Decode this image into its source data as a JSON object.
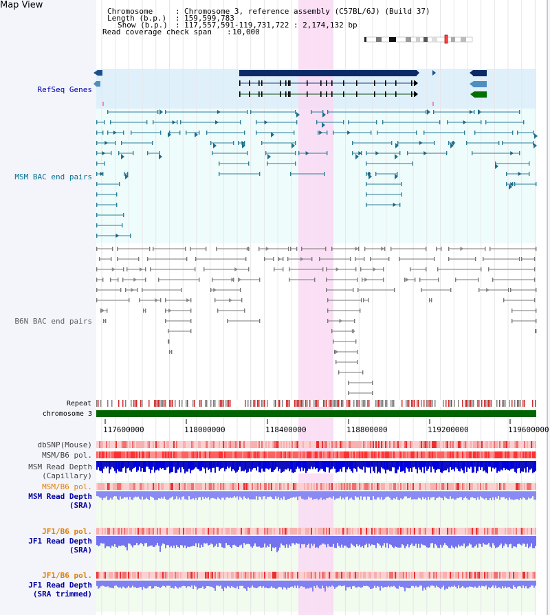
{
  "title": "Map View",
  "header": {
    "chromosome_key": "Chromosome",
    "chromosome_val": "Chromosome 3, reference assembly (C57BL/6J) (Build 37)",
    "length_key": "Length (b.p.)",
    "length_val": "159,599,783",
    "show_key": "Show (b.p.)",
    "show_val": "117,557,591-119,731,722 : 2,174,132 bp",
    "coverage_key": "Read coverage check span",
    "coverage_val": "10,000"
  },
  "labels": {
    "refseq": "RefSeq Genes",
    "msm_bac": "MSM BAC end pairs",
    "b6n_bac": "B6N BAC end pairs",
    "repeat": "Repeat",
    "chromosome": "chromosome 3",
    "dbsnp": "dbSNP(Mouse)",
    "msm_b6_pol": "MSM/B6 pol.",
    "msm_depth_cap_1": "MSM Read Depth",
    "msm_depth_cap_2": "(Capillary)",
    "msm_b6_pol2": "MSM/B6 pol.",
    "msm_depth_sra_1": "MSM Read Depth",
    "msm_depth_sra_2": "(SRA)",
    "jf1_pol": "JF1/B6 pol.",
    "jf1_depth_1": "JF1 Read Depth",
    "jf1_depth_2": "(SRA)",
    "jf1_pol2": "JF1/B6 pol.",
    "jf1_trim_1": "JF1 Read Depth",
    "jf1_trim_2": "(SRA trimmed)"
  },
  "axis": {
    "ticks": [
      "117600000",
      "118000000",
      "118400000",
      "118800000",
      "119200000",
      "119600000"
    ]
  },
  "colors": {
    "refseq_label": "#0000b0",
    "msm_label": "#007090",
    "b6n_label": "#606060",
    "orange_label": "#e08000",
    "blue_label": "#0000a0",
    "highlight": "#f9d9f3",
    "chromosome_bar": "#006400"
  }
}
